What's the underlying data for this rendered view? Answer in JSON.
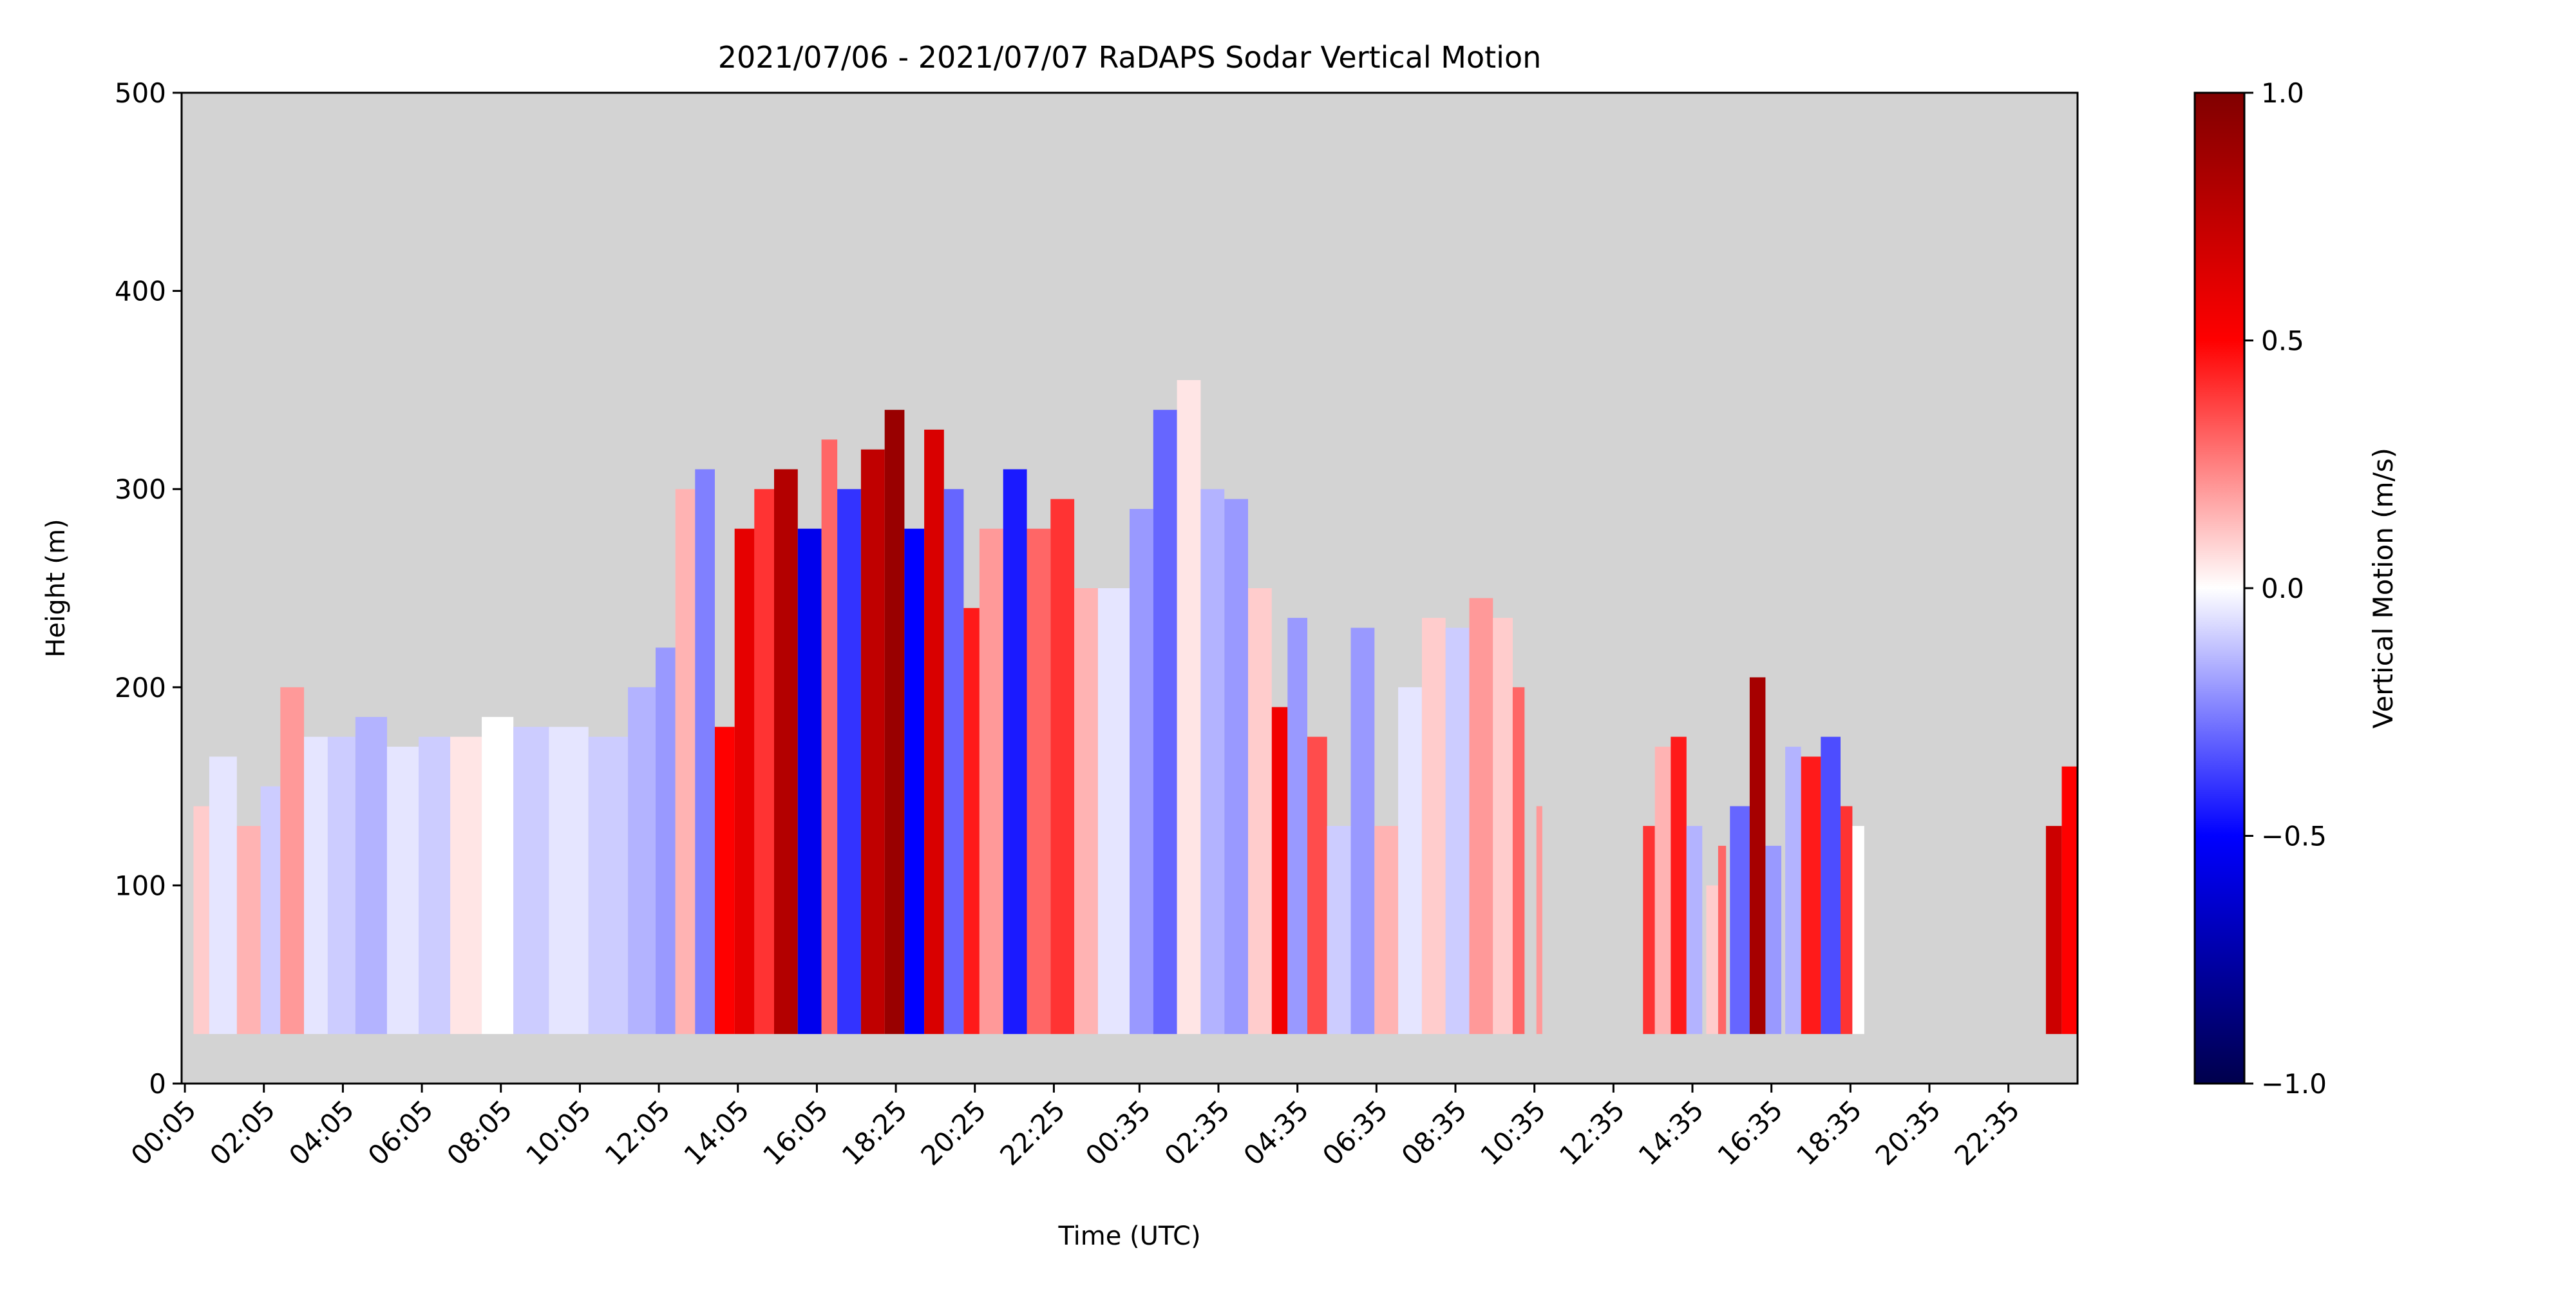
{
  "chart_data": {
    "type": "heatmap",
    "title": "2021/07/06 - 2021/07/07 RaDAPS Sodar Vertical Motion",
    "xlabel": "Time (UTC)",
    "ylabel": "Height (m)",
    "x_range_hours": [
      0,
      48
    ],
    "x_ticks": [
      {
        "label": "00:05",
        "hour": 0.083
      },
      {
        "label": "02:05",
        "hour": 2.083
      },
      {
        "label": "04:05",
        "hour": 4.083
      },
      {
        "label": "06:05",
        "hour": 6.083
      },
      {
        "label": "08:05",
        "hour": 8.083
      },
      {
        "label": "10:05",
        "hour": 10.083
      },
      {
        "label": "12:05",
        "hour": 12.083
      },
      {
        "label": "14:05",
        "hour": 14.083
      },
      {
        "label": "16:05",
        "hour": 16.083
      },
      {
        "label": "18:25",
        "hour": 18.083
      },
      {
        "label": "20:25",
        "hour": 20.083
      },
      {
        "label": "22:25",
        "hour": 22.083
      },
      {
        "label": "00:35",
        "hour": 24.25
      },
      {
        "label": "02:35",
        "hour": 26.25
      },
      {
        "label": "04:35",
        "hour": 28.25
      },
      {
        "label": "06:35",
        "hour": 30.25
      },
      {
        "label": "08:35",
        "hour": 32.25
      },
      {
        "label": "10:35",
        "hour": 34.25
      },
      {
        "label": "12:35",
        "hour": 36.25
      },
      {
        "label": "14:35",
        "hour": 38.25
      },
      {
        "label": "16:35",
        "hour": 40.25
      },
      {
        "label": "18:35",
        "hour": 42.25
      },
      {
        "label": "20:35",
        "hour": 44.25
      },
      {
        "label": "22:35",
        "hour": 46.25
      }
    ],
    "ylim": [
      0,
      500
    ],
    "y_ticks": [
      0,
      100,
      200,
      300,
      400,
      500
    ],
    "min_height_m": 25,
    "missing_color": "#d3d3d3",
    "colorbar": {
      "label": "Vertical Motion (m/s)",
      "colormap": "seismic",
      "vmin": -1.0,
      "vmax": 1.0,
      "ticks": [
        "−1.0",
        "−0.5",
        "0.0",
        "0.5",
        "1.0"
      ],
      "tick_values": [
        -1.0,
        -0.5,
        0.0,
        0.5,
        1.0
      ],
      "stops": [
        "#00004c",
        "#0000ff",
        "#ffffff",
        "#ff0000",
        "#800000"
      ]
    },
    "segments": [
      {
        "start": 0.3,
        "end": 0.7,
        "top": 140,
        "value": 0.1
      },
      {
        "start": 0.7,
        "end": 1.4,
        "top": 165,
        "value": -0.05
      },
      {
        "start": 1.4,
        "end": 2.0,
        "top": 130,
        "value": 0.15
      },
      {
        "start": 2.0,
        "end": 2.5,
        "top": 150,
        "value": -0.1
      },
      {
        "start": 2.5,
        "end": 3.1,
        "top": 200,
        "value": 0.2
      },
      {
        "start": 3.1,
        "end": 3.7,
        "top": 175,
        "value": -0.05
      },
      {
        "start": 3.7,
        "end": 4.4,
        "top": 175,
        "value": -0.1
      },
      {
        "start": 4.4,
        "end": 5.2,
        "top": 185,
        "value": -0.15
      },
      {
        "start": 5.2,
        "end": 6.0,
        "top": 170,
        "value": -0.05
      },
      {
        "start": 6.0,
        "end": 6.8,
        "top": 175,
        "value": -0.1
      },
      {
        "start": 6.8,
        "end": 7.6,
        "top": 175,
        "value": 0.05
      },
      {
        "start": 7.6,
        "end": 8.4,
        "top": 185,
        "value": 0.0
      },
      {
        "start": 8.4,
        "end": 9.3,
        "top": 180,
        "value": -0.1
      },
      {
        "start": 9.3,
        "end": 10.3,
        "top": 180,
        "value": -0.05
      },
      {
        "start": 10.3,
        "end": 11.3,
        "top": 175,
        "value": -0.1
      },
      {
        "start": 11.3,
        "end": 12.0,
        "top": 200,
        "value": -0.15
      },
      {
        "start": 12.0,
        "end": 12.5,
        "top": 220,
        "value": -0.2
      },
      {
        "start": 12.5,
        "end": 13.0,
        "top": 300,
        "value": 0.15
      },
      {
        "start": 13.0,
        "end": 13.5,
        "top": 310,
        "value": -0.25
      },
      {
        "start": 13.5,
        "end": 14.0,
        "top": 180,
        "value": 0.5
      },
      {
        "start": 14.0,
        "end": 14.5,
        "top": 280,
        "value": 0.6
      },
      {
        "start": 14.5,
        "end": 15.0,
        "top": 300,
        "value": 0.4
      },
      {
        "start": 15.0,
        "end": 15.6,
        "top": 310,
        "value": 0.8
      },
      {
        "start": 15.6,
        "end": 16.2,
        "top": 280,
        "value": -0.55
      },
      {
        "start": 16.2,
        "end": 16.6,
        "top": 325,
        "value": 0.3
      },
      {
        "start": 16.6,
        "end": 17.2,
        "top": 300,
        "value": -0.4
      },
      {
        "start": 17.2,
        "end": 17.8,
        "top": 320,
        "value": 0.75
      },
      {
        "start": 17.8,
        "end": 18.3,
        "top": 340,
        "value": 0.9
      },
      {
        "start": 18.3,
        "end": 18.8,
        "top": 280,
        "value": -0.5
      },
      {
        "start": 18.8,
        "end": 19.3,
        "top": 330,
        "value": 0.65
      },
      {
        "start": 19.3,
        "end": 19.8,
        "top": 300,
        "value": -0.3
      },
      {
        "start": 19.8,
        "end": 20.2,
        "top": 240,
        "value": 0.45
      },
      {
        "start": 20.2,
        "end": 20.8,
        "top": 280,
        "value": 0.2
      },
      {
        "start": 20.8,
        "end": 21.4,
        "top": 310,
        "value": -0.45
      },
      {
        "start": 21.4,
        "end": 22.0,
        "top": 280,
        "value": 0.3
      },
      {
        "start": 22.0,
        "end": 22.6,
        "top": 295,
        "value": 0.4
      },
      {
        "start": 22.6,
        "end": 23.2,
        "top": 250,
        "value": 0.15
      },
      {
        "start": 23.2,
        "end": 24.0,
        "top": 250,
        "value": -0.05
      },
      {
        "start": 24.0,
        "end": 24.6,
        "top": 290,
        "value": -0.2
      },
      {
        "start": 24.6,
        "end": 25.2,
        "top": 340,
        "value": -0.3
      },
      {
        "start": 25.2,
        "end": 25.8,
        "top": 355,
        "value": 0.05
      },
      {
        "start": 25.8,
        "end": 26.4,
        "top": 300,
        "value": -0.15
      },
      {
        "start": 26.4,
        "end": 27.0,
        "top": 295,
        "value": -0.2
      },
      {
        "start": 27.0,
        "end": 27.6,
        "top": 250,
        "value": 0.1
      },
      {
        "start": 27.6,
        "end": 28.0,
        "top": 190,
        "value": 0.55
      },
      {
        "start": 28.0,
        "end": 28.5,
        "top": 235,
        "value": -0.2
      },
      {
        "start": 28.5,
        "end": 29.0,
        "top": 175,
        "value": 0.35
      },
      {
        "start": 29.0,
        "end": 29.6,
        "top": 130,
        "value": -0.1
      },
      {
        "start": 29.6,
        "end": 30.2,
        "top": 230,
        "value": -0.2
      },
      {
        "start": 30.2,
        "end": 30.8,
        "top": 130,
        "value": 0.15
      },
      {
        "start": 30.8,
        "end": 31.4,
        "top": 200,
        "value": -0.05
      },
      {
        "start": 31.4,
        "end": 32.0,
        "top": 235,
        "value": 0.1
      },
      {
        "start": 32.0,
        "end": 32.6,
        "top": 230,
        "value": -0.1
      },
      {
        "start": 32.6,
        "end": 33.2,
        "top": 245,
        "value": 0.2
      },
      {
        "start": 33.2,
        "end": 33.7,
        "top": 235,
        "value": 0.1
      },
      {
        "start": 33.7,
        "end": 34.0,
        "top": 200,
        "value": 0.3
      },
      {
        "start": 34.3,
        "end": 34.45,
        "top": 140,
        "value": 0.2
      },
      {
        "start": 37.0,
        "end": 37.3,
        "top": 130,
        "value": 0.4
      },
      {
        "start": 37.3,
        "end": 37.7,
        "top": 170,
        "value": 0.15
      },
      {
        "start": 37.7,
        "end": 38.1,
        "top": 175,
        "value": 0.45
      },
      {
        "start": 38.1,
        "end": 38.5,
        "top": 130,
        "value": -0.15
      },
      {
        "start": 38.6,
        "end": 38.9,
        "top": 100,
        "value": 0.1
      },
      {
        "start": 38.9,
        "end": 39.1,
        "top": 120,
        "value": 0.3
      },
      {
        "start": 39.2,
        "end": 39.7,
        "top": 140,
        "value": -0.3
      },
      {
        "start": 39.7,
        "end": 40.1,
        "top": 205,
        "value": 0.85
      },
      {
        "start": 40.1,
        "end": 40.5,
        "top": 120,
        "value": -0.2
      },
      {
        "start": 40.6,
        "end": 41.0,
        "top": 170,
        "value": -0.15
      },
      {
        "start": 41.0,
        "end": 41.5,
        "top": 165,
        "value": 0.45
      },
      {
        "start": 41.5,
        "end": 42.0,
        "top": 175,
        "value": -0.35
      },
      {
        "start": 42.0,
        "end": 42.3,
        "top": 140,
        "value": 0.4
      },
      {
        "start": 42.3,
        "end": 42.6,
        "top": 130,
        "value": 0.0
      },
      {
        "start": 47.2,
        "end": 47.6,
        "top": 130,
        "value": 0.7
      },
      {
        "start": 47.6,
        "end": 48.0,
        "top": 160,
        "value": 0.5
      }
    ]
  }
}
